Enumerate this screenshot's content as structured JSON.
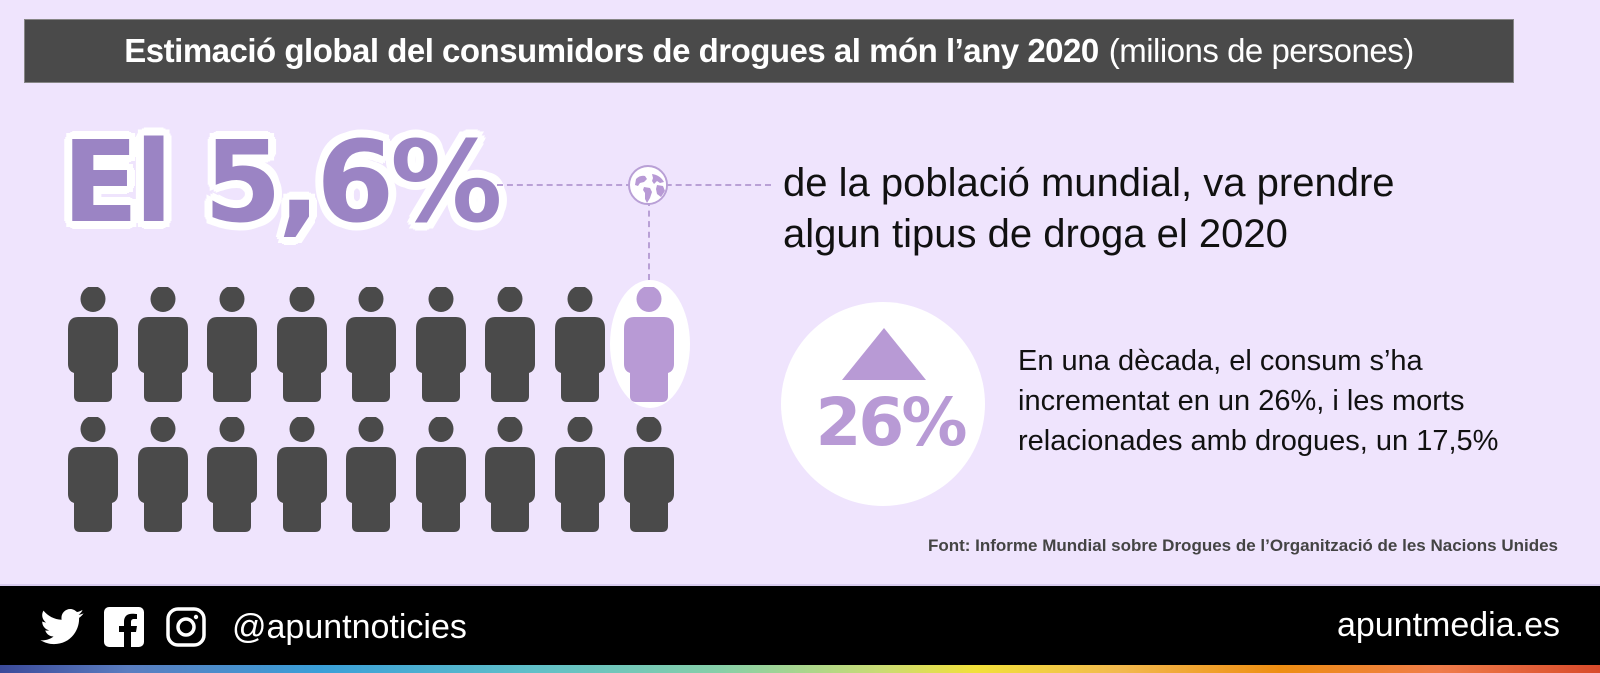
{
  "title": {
    "bold": "Estimació global del consumidors de drogues al món l’any 2020",
    "light": "(milions de persones)"
  },
  "headline_stat": {
    "value": "El 5,6%",
    "text_line1": "de la població mundial, va prendre",
    "text_line2": "algun tipus de droga el 2020"
  },
  "pictogram": {
    "rows": 2,
    "columns": 9,
    "highlighted": {
      "row": 1,
      "column": 9
    },
    "icon": "person-icon",
    "colors": {
      "default": "#4A4A4A",
      "highlight": "#B89AD5"
    }
  },
  "increase": {
    "icon": "up-triangle-icon",
    "value": "26%",
    "text_line1": "En una dècada, el consum s’ha",
    "text_line2": "incrementat en un 26%, i les morts",
    "text_line3": "relacionades amb drogues, un 17,5%"
  },
  "source": "Font: Informe Mundial sobre Drogues de l’Organització de les Nacions Unides",
  "footer": {
    "social_icons": [
      "twitter-icon",
      "facebook-icon",
      "instagram-icon"
    ],
    "handle": "@apuntnoticies",
    "site": "apuntmedia.es"
  },
  "colors": {
    "background": "#EFE4FD",
    "title_bar": "#4A4A4A",
    "accent_purple": "#9B84C4",
    "light_purple": "#B89AD5",
    "footer": "#000000"
  }
}
